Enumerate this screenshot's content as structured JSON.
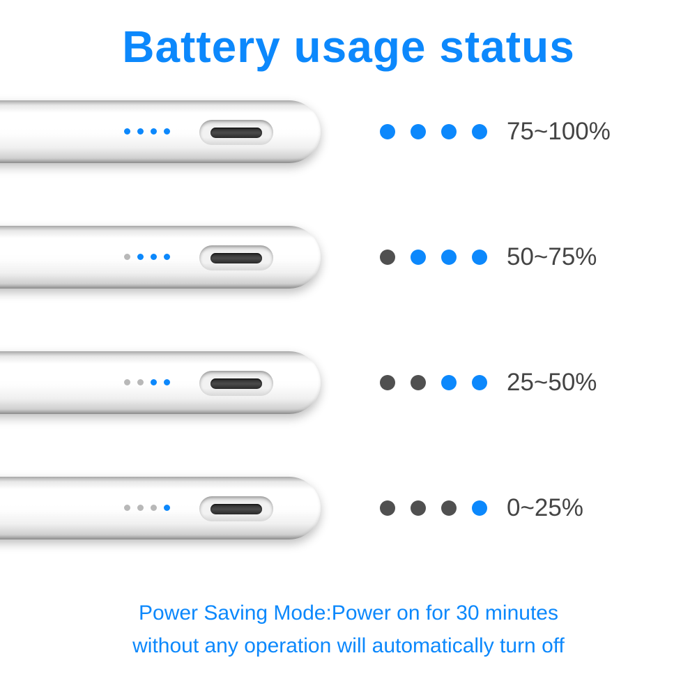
{
  "title": "Battery usage status",
  "colors": {
    "accent": "#0c88fc",
    "off_small": "#b8b8b8",
    "off_large": "#505050",
    "text": "#444444",
    "background": "#ffffff"
  },
  "legend_dot_size": 22,
  "legend_dot_gap": 22,
  "stylus_dot_size": 9,
  "stylus_dot_gap": 10,
  "states": [
    {
      "lit": 4,
      "label": "75~100%",
      "dots": [
        true,
        true,
        true,
        true
      ]
    },
    {
      "lit": 3,
      "label": "50~75%",
      "dots": [
        false,
        true,
        true,
        true
      ]
    },
    {
      "lit": 2,
      "label": "25~50%",
      "dots": [
        false,
        false,
        true,
        true
      ]
    },
    {
      "lit": 1,
      "label": "0~25%",
      "dots": [
        false,
        false,
        false,
        true
      ]
    }
  ],
  "footer_line1": "Power Saving Mode:Power on for 30 minutes",
  "footer_line2": "without any operation will automatically turn off"
}
